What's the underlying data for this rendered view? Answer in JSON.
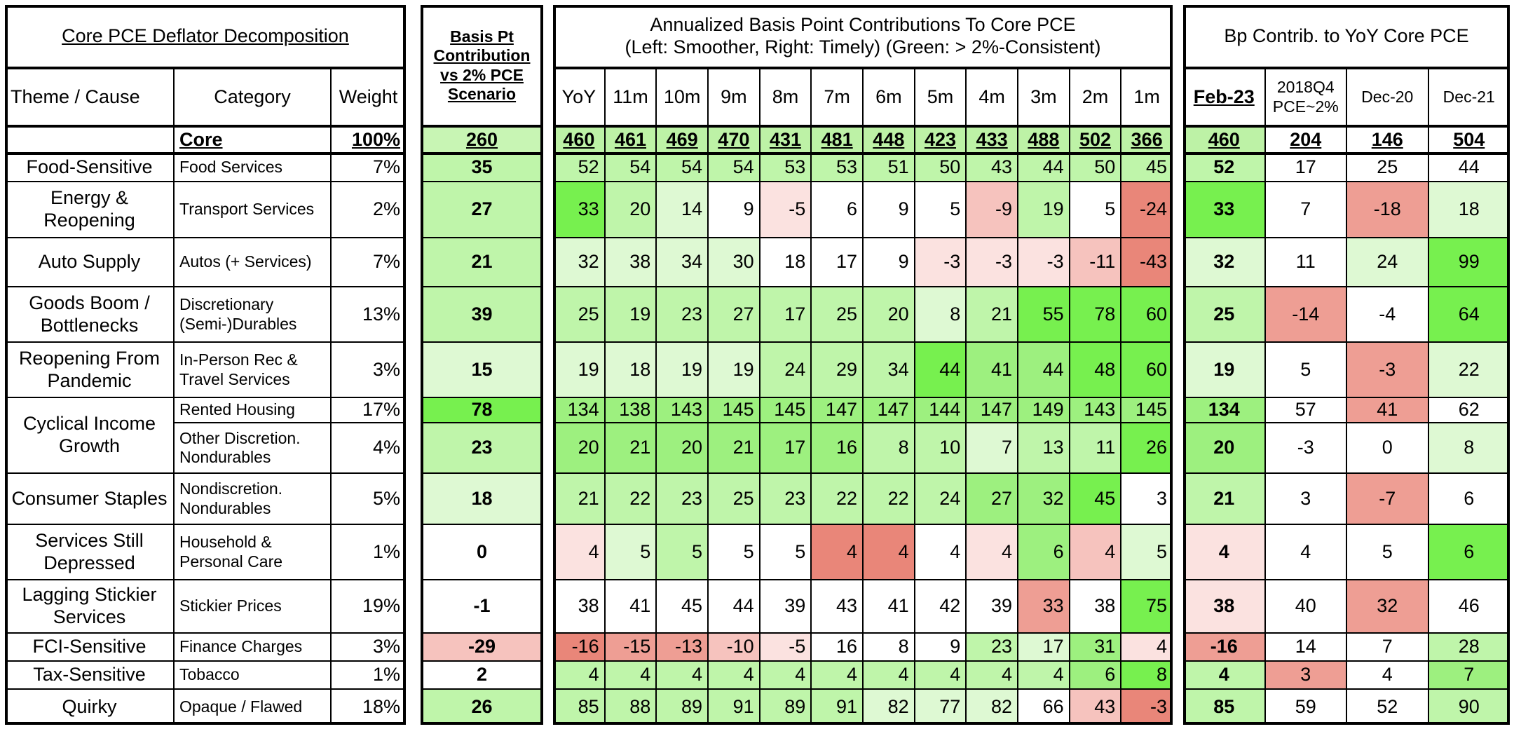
{
  "decomposition": {
    "title": "Core PCE Deflator Decomposition",
    "headers": [
      "Theme / Cause",
      "Category",
      "Weight"
    ]
  },
  "basis_pt": {
    "header": [
      "Basis Pt",
      "Contribution",
      "vs 2% PCE",
      "Scenario"
    ]
  },
  "annualized": {
    "title": [
      "Annualized Basis Point Contributions To Core PCE",
      "(Left: Smoother, Right: Timely) (Green: > 2%-Consistent)"
    ],
    "columns": [
      "YoY",
      "11m",
      "10m",
      "9m",
      "8m",
      "7m",
      "6m",
      "5m",
      "4m",
      "3m",
      "2m",
      "1m"
    ]
  },
  "yoy": {
    "title": "Bp Contrib. to YoY Core PCE",
    "columns": [
      "Feb-23",
      [
        "2018Q4",
        "PCE~2%"
      ],
      "Dec-20",
      "Dec-21"
    ]
  },
  "core": {
    "theme": "",
    "category": "Core",
    "weight": "100%",
    "basis_pt": {
      "value": 260,
      "color": "#c8f5b4"
    },
    "annualized": {
      "values": [
        460,
        461,
        469,
        470,
        431,
        481,
        448,
        423,
        433,
        488,
        502,
        366
      ],
      "color": "#bdf2a6"
    },
    "yoy": {
      "values": [
        460,
        204,
        146,
        504
      ],
      "colors": [
        "#bdf2a6",
        "#ffffff",
        "#ffffff",
        "#ffffff"
      ]
    }
  },
  "groups": [
    {
      "theme": "Food-Sensitive",
      "rows": [
        {
          "category": "Food Services",
          "weight": "7%",
          "basis_pt": {
            "value": 35,
            "color": "#bff5aa"
          },
          "annualized": {
            "values": [
              52,
              54,
              54,
              54,
              53,
              53,
              51,
              50,
              43,
              44,
              50,
              45
            ],
            "colors": [
              "#bff5aa",
              "#bff5aa",
              "#bff5aa",
              "#bff5aa",
              "#bff5aa",
              "#bff5aa",
              "#bff5aa",
              "#bff5aa",
              "#bff5aa",
              "#bff5aa",
              "#bff5aa",
              "#bff5aa"
            ]
          },
          "yoy": {
            "values": [
              52,
              17,
              25,
              44
            ],
            "colors": [
              "#bff5aa",
              "#ffffff",
              "#ffffff",
              "#ffffff"
            ]
          }
        }
      ]
    },
    {
      "theme": [
        "Energy &",
        "Reopening"
      ],
      "rows": [
        {
          "category": "Transport Services",
          "weight": "2%",
          "basis_pt": {
            "value": 27,
            "color": "#bff5aa"
          },
          "annualized": {
            "values": [
              33,
              20,
              14,
              9,
              -5,
              6,
              9,
              5,
              -9,
              19,
              5,
              -24
            ],
            "colors": [
              "#77f04f",
              "#bff5aa",
              "#def9d3",
              "#ffffff",
              "#fbe2e0",
              "#ffffff",
              "#ffffff",
              "#ffffff",
              "#f6c3be",
              "#bff5aa",
              "#ffffff",
              "#e98679"
            ]
          },
          "yoy": {
            "values": [
              33,
              7,
              -18,
              18
            ],
            "colors": [
              "#77f04f",
              "#ffffff",
              "#ee9e94",
              "#def9d3"
            ]
          }
        }
      ]
    },
    {
      "theme": "Auto Supply",
      "rows": [
        {
          "category": "Autos (+ Services)",
          "weight": "7%",
          "basis_pt": {
            "value": 21,
            "color": "#bff5aa"
          },
          "annualized": {
            "values": [
              32,
              38,
              34,
              30,
              18,
              17,
              9,
              -3,
              -3,
              -3,
              -11,
              -43
            ],
            "colors": [
              "#def9d3",
              "#def9d3",
              "#def9d3",
              "#def9d3",
              "#ffffff",
              "#ffffff",
              "#ffffff",
              "#fbe2e0",
              "#fbe2e0",
              "#fbe2e0",
              "#f6c3be",
              "#e98679"
            ]
          },
          "yoy": {
            "values": [
              32,
              11,
              24,
              99
            ],
            "colors": [
              "#def9d3",
              "#ffffff",
              "#def9d3",
              "#77f04f"
            ]
          }
        }
      ]
    },
    {
      "theme": [
        "Goods Boom /",
        "Bottlenecks"
      ],
      "rows": [
        {
          "category": [
            "Discretionary",
            "(Semi-)Durables"
          ],
          "weight": "13%",
          "basis_pt": {
            "value": 39,
            "color": "#bff5aa"
          },
          "annualized": {
            "values": [
              25,
              19,
              23,
              27,
              17,
              25,
              20,
              8,
              21,
              55,
              78,
              60
            ],
            "colors": [
              "#bff5aa",
              "#bff5aa",
              "#bff5aa",
              "#bff5aa",
              "#bff5aa",
              "#bff5aa",
              "#bff5aa",
              "#def9d3",
              "#bff5aa",
              "#77f04f",
              "#77f04f",
              "#77f04f"
            ]
          },
          "yoy": {
            "values": [
              25,
              -14,
              -4,
              64
            ],
            "colors": [
              "#bff5aa",
              "#ee9e94",
              "#ffffff",
              "#77f04f"
            ]
          }
        }
      ]
    },
    {
      "theme": [
        "Reopening From",
        "Pandemic"
      ],
      "rows": [
        {
          "category": [
            "In-Person Rec &",
            "Travel Services"
          ],
          "weight": "3%",
          "basis_pt": {
            "value": 15,
            "color": "#def9d3"
          },
          "annualized": {
            "values": [
              19,
              18,
              19,
              19,
              24,
              29,
              34,
              44,
              41,
              44,
              48,
              60
            ],
            "colors": [
              "#def9d3",
              "#def9d3",
              "#def9d3",
              "#def9d3",
              "#bff5aa",
              "#bff5aa",
              "#bff5aa",
              "#77f04f",
              "#9df07f",
              "#9df07f",
              "#77f04f",
              "#77f04f"
            ]
          },
          "yoy": {
            "values": [
              19,
              5,
              -3,
              22
            ],
            "colors": [
              "#def9d3",
              "#ffffff",
              "#ee9e94",
              "#def9d3"
            ]
          }
        }
      ]
    },
    {
      "theme": [
        "Cyclical Income",
        "Growth"
      ],
      "rows": [
        {
          "category": "Rented Housing",
          "weight": "17%",
          "basis_pt": {
            "value": 78,
            "color": "#77f04f"
          },
          "annualized": {
            "values": [
              134,
              138,
              143,
              145,
              145,
              147,
              147,
              144,
              147,
              149,
              143,
              145
            ],
            "colors": [
              "#9df07f",
              "#9df07f",
              "#9df07f",
              "#9df07f",
              "#9df07f",
              "#9df07f",
              "#9df07f",
              "#9df07f",
              "#9df07f",
              "#9df07f",
              "#9df07f",
              "#9df07f"
            ]
          },
          "yoy": {
            "values": [
              134,
              57,
              41,
              62
            ],
            "colors": [
              "#9df07f",
              "#ffffff",
              "#ee9e94",
              "#ffffff"
            ]
          }
        },
        {
          "category": [
            "Other Discretion.",
            "Nondurables"
          ],
          "weight": "4%",
          "basis_pt": {
            "value": 23,
            "color": "#bff5aa"
          },
          "annualized": {
            "values": [
              20,
              21,
              20,
              21,
              17,
              16,
              8,
              10,
              7,
              13,
              11,
              26
            ],
            "colors": [
              "#9df07f",
              "#9df07f",
              "#9df07f",
              "#9df07f",
              "#9df07f",
              "#9df07f",
              "#bff5aa",
              "#bff5aa",
              "#def9d3",
              "#bff5aa",
              "#bff5aa",
              "#77f04f"
            ]
          },
          "yoy": {
            "values": [
              20,
              -3,
              0,
              8
            ],
            "colors": [
              "#9df07f",
              "#ffffff",
              "#ffffff",
              "#def9d3"
            ]
          }
        }
      ]
    },
    {
      "theme": "Consumer Staples",
      "rows": [
        {
          "category": [
            "Nondiscretion.",
            "Nondurables"
          ],
          "weight": "5%",
          "basis_pt": {
            "value": 18,
            "color": "#def9d3"
          },
          "annualized": {
            "values": [
              21,
              22,
              23,
              25,
              23,
              22,
              22,
              24,
              27,
              32,
              45,
              3
            ],
            "colors": [
              "#bff5aa",
              "#bff5aa",
              "#bff5aa",
              "#bff5aa",
              "#bff5aa",
              "#bff5aa",
              "#bff5aa",
              "#bff5aa",
              "#9df07f",
              "#9df07f",
              "#77f04f",
              "#ffffff"
            ]
          },
          "yoy": {
            "values": [
              21,
              3,
              -7,
              6
            ],
            "colors": [
              "#bff5aa",
              "#ffffff",
              "#ee9e94",
              "#ffffff"
            ]
          }
        }
      ]
    },
    {
      "theme": [
        "Services Still",
        "Depressed"
      ],
      "rows": [
        {
          "category": [
            "Household &",
            "Personal Care"
          ],
          "weight": "1%",
          "basis_pt": {
            "value": 0,
            "color": "#ffffff"
          },
          "annualized": {
            "values": [
              4,
              5,
              5,
              5,
              5,
              4,
              4,
              4,
              4,
              6,
              4,
              5
            ],
            "colors": [
              "#fbe2e0",
              "#def9d3",
              "#bff5aa",
              "#ffffff",
              "#ffffff",
              "#e98679",
              "#e98679",
              "#ffffff",
              "#fbe2e0",
              "#9df07f",
              "#f6c3be",
              "#def9d3"
            ]
          },
          "yoy": {
            "values": [
              4,
              4,
              5,
              6
            ],
            "colors": [
              "#fbe2e0",
              "#ffffff",
              "#ffffff",
              "#77f04f"
            ]
          }
        }
      ]
    },
    {
      "theme": [
        "Lagging Stickier",
        "Services"
      ],
      "rows": [
        {
          "category": "Stickier Prices",
          "weight": "19%",
          "basis_pt": {
            "value": -1,
            "color": "#ffffff"
          },
          "annualized": {
            "values": [
              38,
              41,
              45,
              44,
              39,
              43,
              41,
              42,
              39,
              33,
              38,
              75
            ],
            "colors": [
              "#ffffff",
              "#ffffff",
              "#ffffff",
              "#ffffff",
              "#ffffff",
              "#ffffff",
              "#ffffff",
              "#ffffff",
              "#ffffff",
              "#ee9e94",
              "#ffffff",
              "#77f04f"
            ]
          },
          "yoy": {
            "values": [
              38,
              40,
              32,
              46
            ],
            "colors": [
              "#fbe2e0",
              "#ffffff",
              "#ee9e94",
              "#ffffff"
            ]
          }
        }
      ]
    },
    {
      "theme": "FCI-Sensitive",
      "rows": [
        {
          "category": "Finance Charges",
          "weight": "3%",
          "basis_pt": {
            "value": -29,
            "color": "#f6c3be"
          },
          "annualized": {
            "values": [
              -16,
              -15,
              -13,
              -10,
              -5,
              16,
              8,
              9,
              23,
              17,
              31,
              4
            ],
            "colors": [
              "#e98679",
              "#ee9e94",
              "#ee9e94",
              "#f6c3be",
              "#fbe2e0",
              "#ffffff",
              "#ffffff",
              "#ffffff",
              "#bff5aa",
              "#def9d3",
              "#9df07f",
              "#fbe2e0"
            ]
          },
          "yoy": {
            "values": [
              -16,
              14,
              7,
              28
            ],
            "colors": [
              "#ee9e94",
              "#ffffff",
              "#ffffff",
              "#bff5aa"
            ]
          }
        }
      ]
    },
    {
      "theme": "Tax-Sensitive",
      "rows": [
        {
          "category": "Tobacco",
          "weight": "1%",
          "basis_pt": {
            "value": 2,
            "color": "#ffffff"
          },
          "annualized": {
            "values": [
              4,
              4,
              4,
              4,
              4,
              4,
              4,
              4,
              4,
              4,
              6,
              8
            ],
            "colors": [
              "#bff5aa",
              "#bff5aa",
              "#bff5aa",
              "#bff5aa",
              "#bff5aa",
              "#bff5aa",
              "#bff5aa",
              "#bff5aa",
              "#bff5aa",
              "#bff5aa",
              "#9df07f",
              "#77f04f"
            ]
          },
          "yoy": {
            "values": [
              4,
              3,
              4,
              7
            ],
            "colors": [
              "#bff5aa",
              "#ee9e94",
              "#ffffff",
              "#9df07f"
            ]
          }
        }
      ]
    },
    {
      "theme": "Quirky",
      "rows": [
        {
          "category": "Opaque / Flawed",
          "weight": "18%",
          "basis_pt": {
            "value": 26,
            "color": "#bff5aa"
          },
          "annualized": {
            "values": [
              85,
              88,
              89,
              91,
              89,
              91,
              82,
              77,
              82,
              66,
              43,
              -3
            ],
            "colors": [
              "#bff5aa",
              "#bff5aa",
              "#bff5aa",
              "#bff5aa",
              "#bff5aa",
              "#bff5aa",
              "#def9d3",
              "#def9d3",
              "#def9d3",
              "#ffffff",
              "#f6c3be",
              "#e98679"
            ]
          },
          "yoy": {
            "values": [
              85,
              59,
              52,
              90
            ],
            "colors": [
              "#bff5aa",
              "#ffffff",
              "#ffffff",
              "#bff5aa"
            ]
          }
        }
      ]
    }
  ]
}
